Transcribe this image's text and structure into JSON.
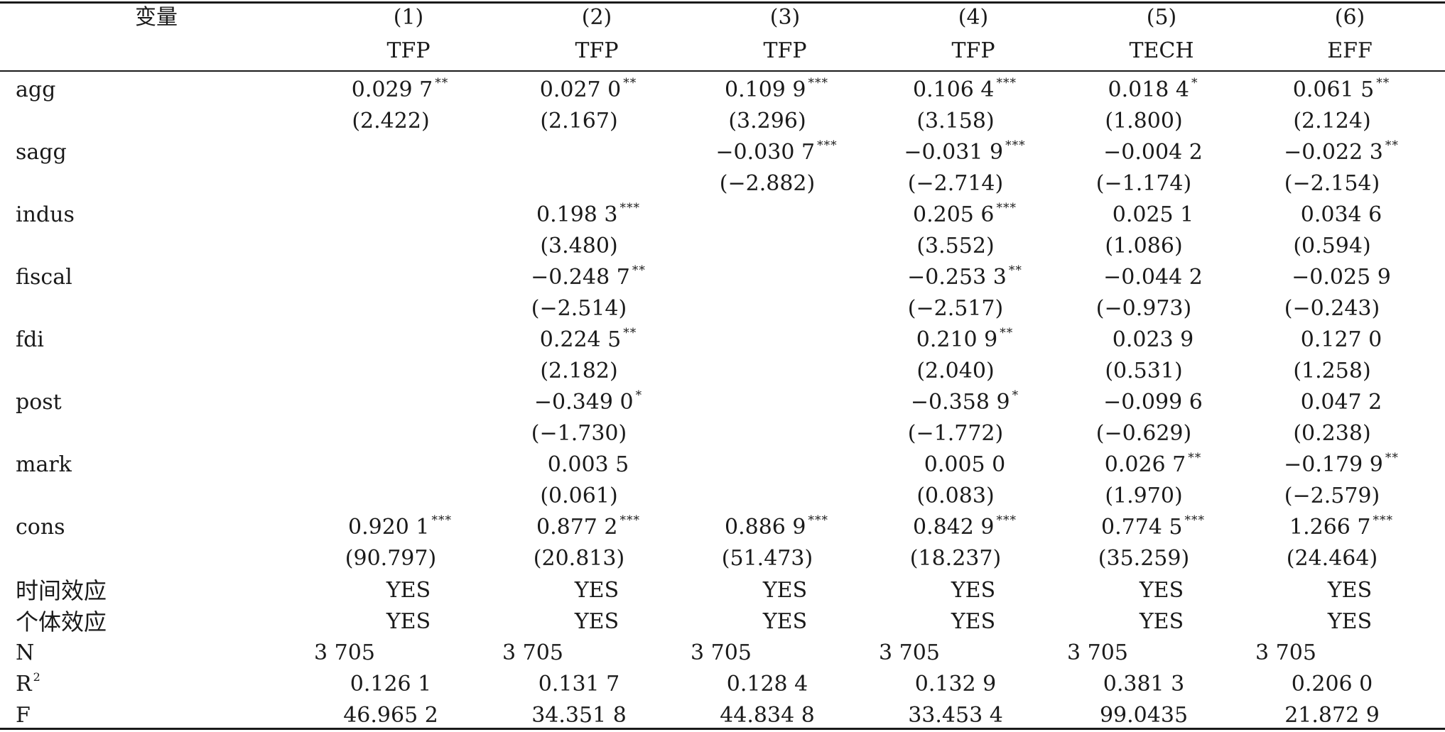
{
  "header": {
    "var_label": "变量",
    "columns": [
      {
        "num": "(1)",
        "dep": "TFP"
      },
      {
        "num": "(2)",
        "dep": "TFP"
      },
      {
        "num": "(3)",
        "dep": "TFP"
      },
      {
        "num": "(4)",
        "dep": "TFP"
      },
      {
        "num": "(5)",
        "dep": "TECH"
      },
      {
        "num": "(6)",
        "dep": "EFF"
      }
    ]
  },
  "rows": [
    {
      "label": "agg",
      "coef": [
        {
          "v": "0.029 7",
          "s": "**"
        },
        {
          "v": "0.027 0",
          "s": "**"
        },
        {
          "v": "0.109 9",
          "s": "***"
        },
        {
          "v": "0.106 4",
          "s": "***"
        },
        {
          "v": "0.018 4",
          "s": "*"
        },
        {
          "v": "0.061 5",
          "s": "**"
        }
      ],
      "t": [
        "(2.422)",
        "(2.167)",
        "(3.296)",
        "(3.158)",
        "(1.800)",
        "(2.124)"
      ]
    },
    {
      "label": "sagg",
      "coef": [
        {
          "v": "",
          "s": ""
        },
        {
          "v": "",
          "s": ""
        },
        {
          "v": "−0.030 7",
          "s": "***"
        },
        {
          "v": "−0.031 9",
          "s": "***"
        },
        {
          "v": "−0.004 2",
          "s": ""
        },
        {
          "v": "−0.022 3",
          "s": "**"
        }
      ],
      "t": [
        "",
        "",
        "(−2.882)",
        "(−2.714)",
        "(−1.174)",
        "(−2.154)"
      ]
    },
    {
      "label": "indus",
      "coef": [
        {
          "v": "",
          "s": ""
        },
        {
          "v": "0.198 3",
          "s": "***"
        },
        {
          "v": "",
          "s": ""
        },
        {
          "v": "0.205 6",
          "s": "***"
        },
        {
          "v": "0.025 1",
          "s": ""
        },
        {
          "v": "0.034 6",
          "s": ""
        }
      ],
      "t": [
        "",
        "(3.480)",
        "",
        "(3.552)",
        "(1.086)",
        "(0.594)"
      ]
    },
    {
      "label": "fiscal",
      "coef": [
        {
          "v": "",
          "s": ""
        },
        {
          "v": "−0.248 7",
          "s": "**"
        },
        {
          "v": "",
          "s": ""
        },
        {
          "v": "−0.253 3",
          "s": "**"
        },
        {
          "v": "−0.044 2",
          "s": ""
        },
        {
          "v": "−0.025 9",
          "s": ""
        }
      ],
      "t": [
        "",
        "(−2.514)",
        "",
        "(−2.517)",
        "(−0.973)",
        "(−0.243)"
      ]
    },
    {
      "label": "fdi",
      "coef": [
        {
          "v": "",
          "s": ""
        },
        {
          "v": "0.224 5",
          "s": "**"
        },
        {
          "v": "",
          "s": ""
        },
        {
          "v": "0.210 9",
          "s": "**"
        },
        {
          "v": "0.023 9",
          "s": ""
        },
        {
          "v": "0.127 0",
          "s": ""
        }
      ],
      "t": [
        "",
        "(2.182)",
        "",
        "(2.040)",
        "(0.531)",
        "(1.258)"
      ]
    },
    {
      "label": "post",
      "coef": [
        {
          "v": "",
          "s": ""
        },
        {
          "v": "−0.349 0",
          "s": "*"
        },
        {
          "v": "",
          "s": ""
        },
        {
          "v": "−0.358 9",
          "s": "*"
        },
        {
          "v": "−0.099 6",
          "s": ""
        },
        {
          "v": "0.047 2",
          "s": ""
        }
      ],
      "t": [
        "",
        "(−1.730)",
        "",
        "(−1.772)",
        "(−0.629)",
        "(0.238)"
      ]
    },
    {
      "label": "mark",
      "coef": [
        {
          "v": "",
          "s": ""
        },
        {
          "v": "0.003 5",
          "s": ""
        },
        {
          "v": "",
          "s": ""
        },
        {
          "v": "0.005 0",
          "s": ""
        },
        {
          "v": "0.026 7",
          "s": "**"
        },
        {
          "v": "−0.179 9",
          "s": "**"
        }
      ],
      "t": [
        "",
        "(0.061)",
        "",
        "(0.083)",
        "(1.970)",
        "(−2.579)"
      ]
    },
    {
      "label": "cons",
      "coef": [
        {
          "v": "0.920 1",
          "s": "***"
        },
        {
          "v": "0.877 2",
          "s": "***"
        },
        {
          "v": "0.886 9",
          "s": "***"
        },
        {
          "v": "0.842 9",
          "s": "***"
        },
        {
          "v": "0.774 5",
          "s": "***"
        },
        {
          "v": "1.266 7",
          "s": "***"
        }
      ],
      "t": [
        "(90.797)",
        "(20.813)",
        "(51.473)",
        "(18.237)",
        "(35.259)",
        "(24.464)"
      ]
    }
  ],
  "footer": {
    "time_effect": {
      "label": "时间效应",
      "values": [
        "YES",
        "YES",
        "YES",
        "YES",
        "YES",
        "YES"
      ]
    },
    "indiv_effect": {
      "label": "个体效应",
      "values": [
        "YES",
        "YES",
        "YES",
        "YES",
        "YES",
        "YES"
      ]
    },
    "n": {
      "label": "N",
      "values": [
        "3 705",
        "3 705",
        "3 705",
        "3 705",
        "3 705",
        "3 705"
      ]
    },
    "r2": {
      "label": "R",
      "sup": "2",
      "values": [
        "0.126 1",
        "0.131 7",
        "0.128 4",
        "0.132 9",
        "0.381 3",
        "0.206 0"
      ]
    },
    "f": {
      "label": "F",
      "values": [
        "46.965 2",
        "34.351 8",
        "44.834 8",
        "33.453 4",
        "99.0435",
        "21.872 9"
      ]
    }
  }
}
